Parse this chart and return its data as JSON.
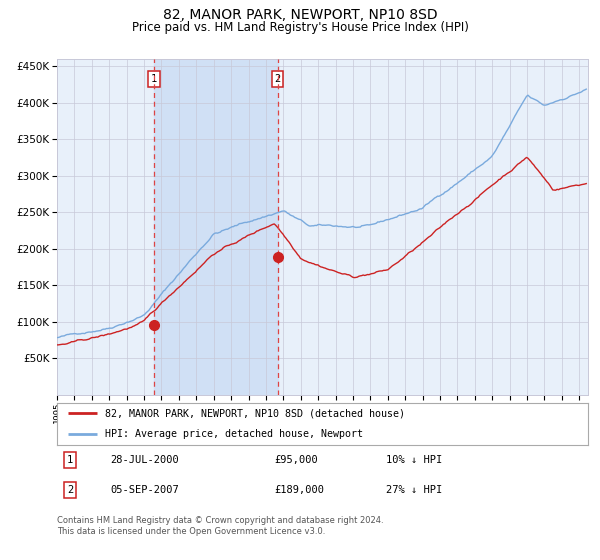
{
  "title": "82, MANOR PARK, NEWPORT, NP10 8SD",
  "subtitle": "Price paid vs. HM Land Registry's House Price Index (HPI)",
  "title_fontsize": 10,
  "subtitle_fontsize": 8.5,
  "ylabel_fontsize": 7.5,
  "xtick_fontsize": 6.5,
  "background_color": "#ffffff",
  "plot_bg_color": "#e8f0fa",
  "grid_color": "#c8c8d8",
  "hpi_color": "#7aaadd",
  "price_color": "#cc2222",
  "marker_color": "#cc2222",
  "vline_color": "#dd4444",
  "shade_color": "#d0e0f5",
  "ylim": [
    0,
    460000
  ],
  "yticks": [
    50000,
    100000,
    150000,
    200000,
    250000,
    300000,
    350000,
    400000,
    450000
  ],
  "sale1_date_num": 2000.57,
  "sale1_price": 95000,
  "sale2_date_num": 2007.67,
  "sale2_price": 189000,
  "sale1_label": "1",
  "sale2_label": "2",
  "legend_entries": [
    "82, MANOR PARK, NEWPORT, NP10 8SD (detached house)",
    "HPI: Average price, detached house, Newport"
  ],
  "annotation1": [
    "1",
    "28-JUL-2000",
    "£95,000",
    "10% ↓ HPI"
  ],
  "annotation2": [
    "2",
    "05-SEP-2007",
    "£189,000",
    "27% ↓ HPI"
  ],
  "footer": "Contains HM Land Registry data © Crown copyright and database right 2024.\nThis data is licensed under the Open Government Licence v3.0.",
  "xmin": 1995.0,
  "xmax": 2025.5
}
